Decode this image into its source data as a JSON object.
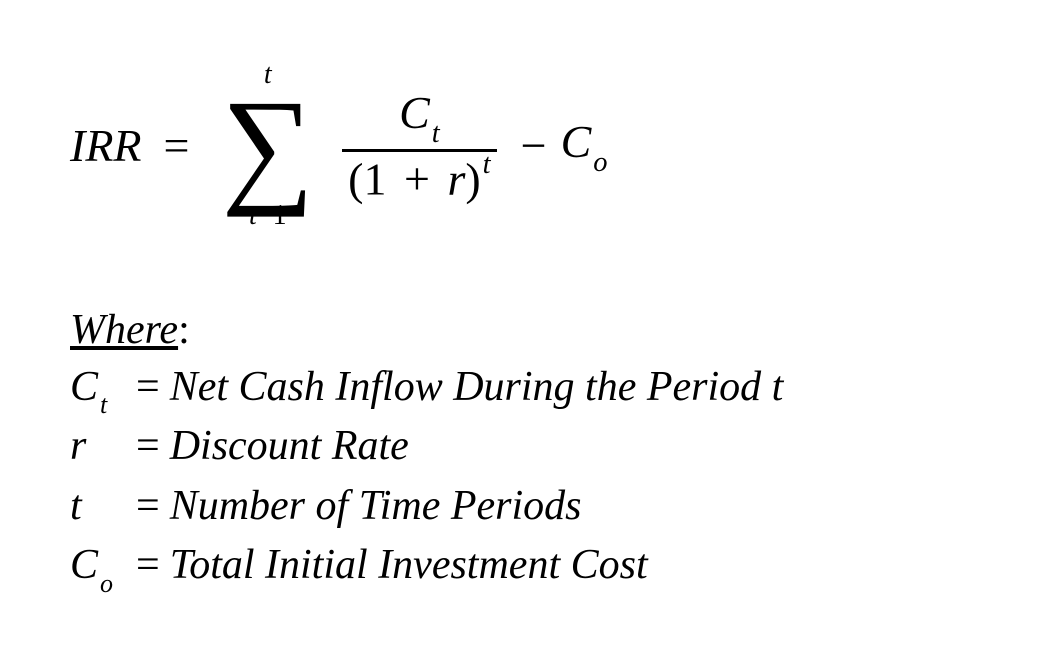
{
  "colors": {
    "text": "#000000",
    "background": "#ffffff",
    "rule": "#000000"
  },
  "typography": {
    "family": "Cambria Math / Times New Roman, serif italic",
    "equation_fontsize_pt": 34,
    "sigma_fontsize_pt": 96,
    "sumlimits_fontsize_pt": 20,
    "where_fontsize_pt": 31,
    "subscript_scale": 0.62
  },
  "formula": {
    "lhs": "IRR",
    "equals": "=",
    "sum": {
      "upper": "t",
      "symbol": "∑",
      "lower_var": "t",
      "lower_op": "−",
      "lower_val": "1"
    },
    "fraction": {
      "numerator": {
        "base": "C",
        "sub": "t"
      },
      "denominator": {
        "open": "(",
        "one": "1",
        "plus": "+",
        "r": "r",
        "close": ")",
        "exp": "t"
      }
    },
    "minus": "−",
    "tail": {
      "base": "C",
      "sub": "o"
    }
  },
  "where": {
    "heading": "Where",
    "colon": ":",
    "eq": "=",
    "rows": [
      {
        "sym_base": "C",
        "sym_sub": "t",
        "text": "Net Cash Inflow During the Period t"
      },
      {
        "sym_base": "r",
        "sym_sub": "",
        "text": "Discount Rate"
      },
      {
        "sym_base": "t",
        "sym_sub": "",
        "text": "Number of Time Periods"
      },
      {
        "sym_base": "C",
        "sym_sub": "o",
        "text": "Total Initial Investment Cost"
      }
    ]
  }
}
